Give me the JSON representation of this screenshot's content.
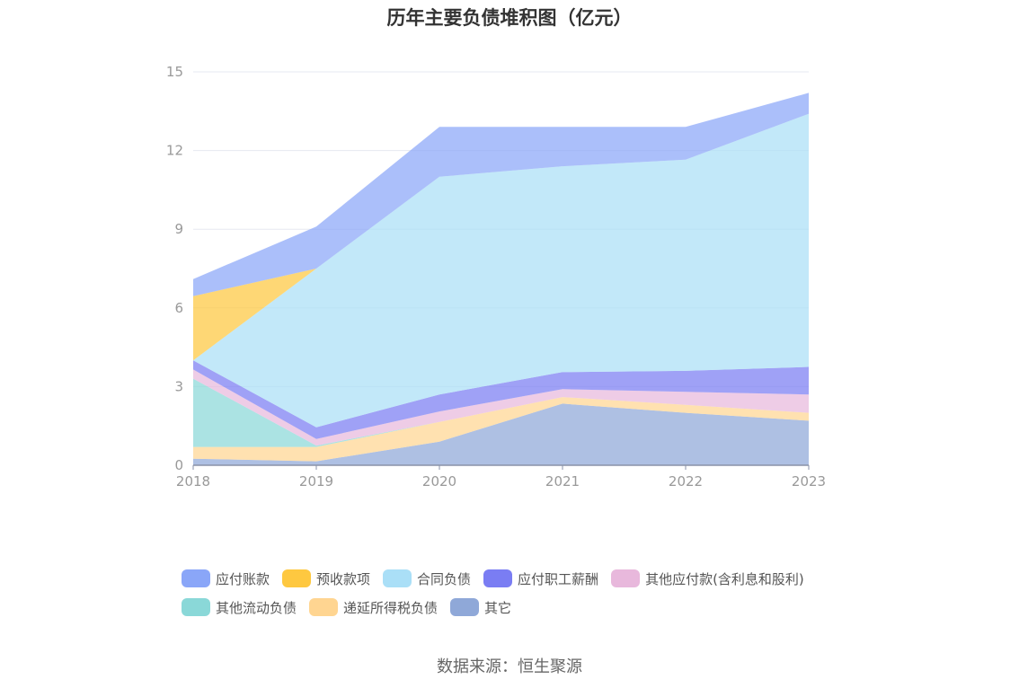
{
  "source": "数据来源：恒生聚源",
  "chart_data": {
    "type": "area",
    "stacked": true,
    "title": "历年主要负债堆积图（亿元）",
    "x": [
      "2018",
      "2019",
      "2020",
      "2021",
      "2022",
      "2023"
    ],
    "ylim": [
      0,
      15
    ],
    "yticks": [
      "0",
      "3",
      "6",
      "9",
      "12",
      "15"
    ],
    "grid": true,
    "legend_position": "bottom",
    "series": [
      {
        "name": "其它",
        "color": "#8fa8d8",
        "values": [
          0.25,
          0.15,
          0.9,
          2.35,
          2.0,
          1.7
        ]
      },
      {
        "name": "递延所得税负债",
        "color": "#ffd591",
        "values": [
          0.45,
          0.55,
          0.75,
          0.25,
          0.3,
          0.3
        ]
      },
      {
        "name": "其他流动负债",
        "color": "#8ad8d8",
        "values": [
          2.6,
          0.05,
          0.0,
          0.0,
          0.0,
          0.0
        ]
      },
      {
        "name": "其他应付款(含利息和股利)",
        "color": "#e8b8dc",
        "values": [
          0.35,
          0.25,
          0.4,
          0.3,
          0.5,
          0.7
        ]
      },
      {
        "name": "应付职工薪酬",
        "color": "#7a7df3",
        "values": [
          0.35,
          0.45,
          0.65,
          0.65,
          0.8,
          1.05
        ]
      },
      {
        "name": "合同负债",
        "color": "#aadff7",
        "values": [
          0.0,
          6.05,
          8.3,
          7.85,
          8.05,
          9.65
        ]
      },
      {
        "name": "预收款项",
        "color": "#fec840",
        "values": [
          2.45,
          0.0,
          0.0,
          0.0,
          0.0,
          0.0
        ]
      },
      {
        "name": "应付账款",
        "color": "#8aa6f8",
        "values": [
          0.65,
          1.6,
          1.9,
          1.5,
          1.25,
          0.8
        ]
      }
    ],
    "legend_order": [
      "应付账款",
      "预收款项",
      "合同负债",
      "应付职工薪酬",
      "其他应付款(含利息和股利)",
      "其他流动负债",
      "递延所得税负债",
      "其它"
    ]
  }
}
